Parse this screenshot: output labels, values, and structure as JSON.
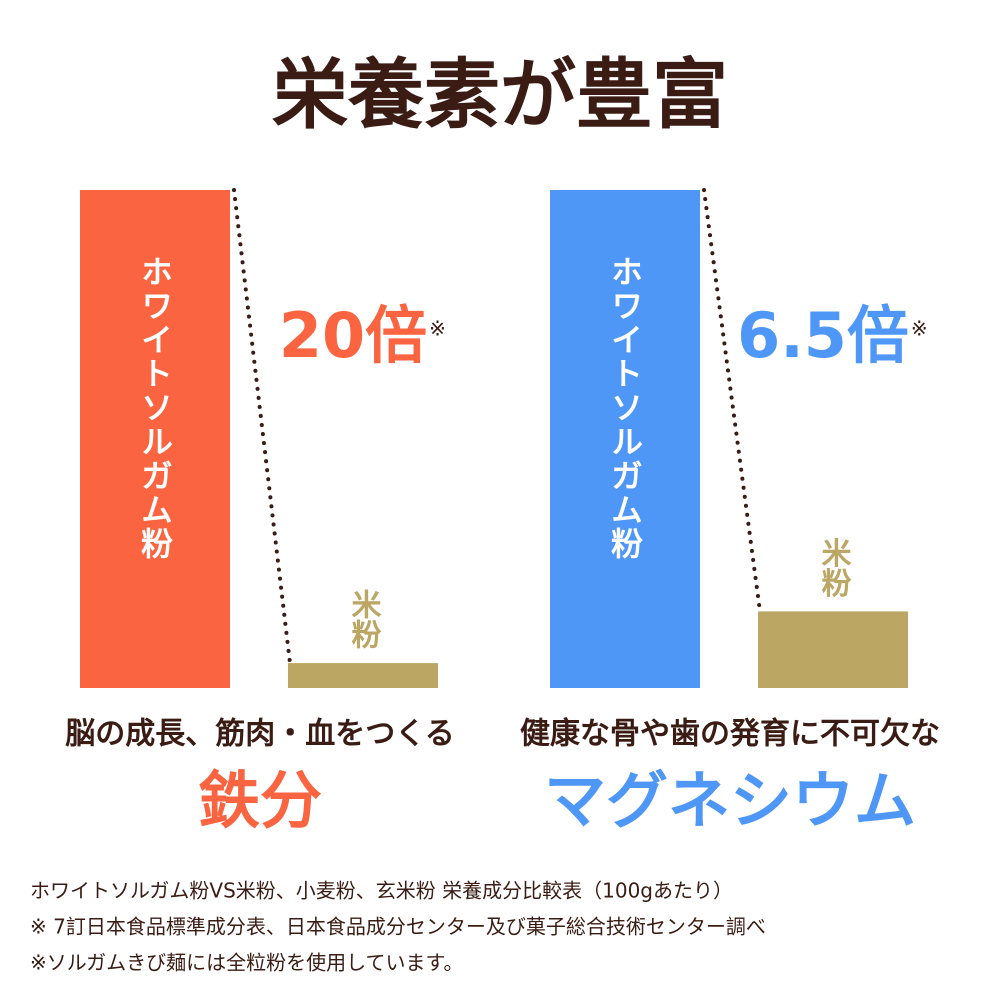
{
  "title": "栄養素が豊富",
  "chart_data": [
    {
      "type": "bar",
      "categories": [
        "ホワイトソルガム粉",
        "米粉"
      ],
      "values": [
        20,
        1
      ],
      "value_labels": [
        "20倍",
        null
      ],
      "note_mark": "※",
      "colors": [
        "#fa6440",
        "#bba664"
      ],
      "ylim": [
        0,
        20
      ],
      "subtitle": "脳の成長、筋肉・血をつくる",
      "title": "鉄分"
    },
    {
      "type": "bar",
      "categories": [
        "ホワイトソルガム粉",
        "米粉"
      ],
      "values": [
        6.5,
        1
      ],
      "value_labels": [
        "6.5倍",
        null
      ],
      "note_mark": "※",
      "colors": [
        "#4f97f7",
        "#bba664"
      ],
      "ylim": [
        0,
        6.5
      ],
      "subtitle": "健康な骨や歯の発育に不可欠な",
      "title": "マグネシウム"
    }
  ],
  "footnotes": [
    "ホワイトソルガム粉VS米粉、小麦粉、玄米粉 栄養成分比較表（100gあたり）",
    "※ 7訂日本食品標準成分表、日本食品成分センター及び菓子総合技術センター調べ",
    "※ソルガムきび麺には全粒粉を使用しています。"
  ]
}
